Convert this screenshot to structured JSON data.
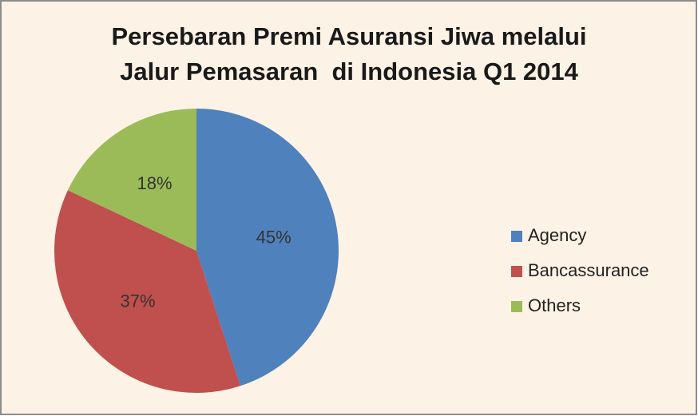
{
  "chart_data": {
    "type": "pie",
    "title": [
      "Persebaran Premi Asuransi Jiwa melalui",
      "Jalur Pemasaran  di Indonesia Q1 2014"
    ],
    "categories": [
      "Agency",
      "Bancassurance",
      "Others"
    ],
    "values": [
      45,
      37,
      18
    ],
    "value_labels": [
      "45%",
      "37%",
      "18%"
    ],
    "colors": [
      "#4f81bd",
      "#c0504d",
      "#9bbb59"
    ],
    "legend": "right"
  }
}
